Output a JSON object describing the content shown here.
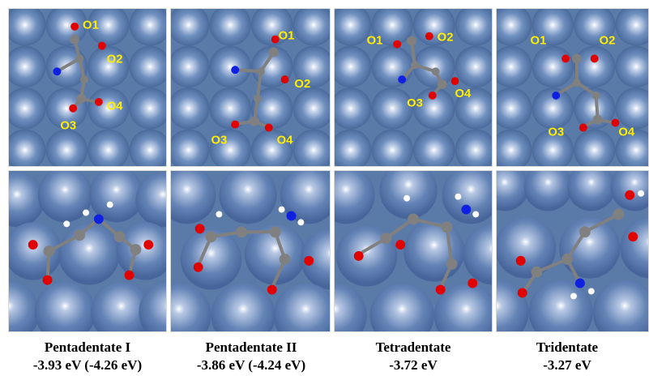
{
  "colors": {
    "surface": "#5a7aa8",
    "carbon": "#808080",
    "oxygen": "#e00000",
    "nitrogen": "#1020e0",
    "hydrogen": "#ffffff",
    "label": "#ffee00"
  },
  "panels": [
    {
      "name": "Pentadentate I",
      "energy": "-3.93 eV (-4.26 eV)",
      "labels": [
        "O1",
        "O2",
        "O3",
        "O4"
      ]
    },
    {
      "name": "Pentadentate II",
      "energy": "-3.86 eV (-4.24 eV)",
      "labels": [
        "O1",
        "O2",
        "O3",
        "O4"
      ]
    },
    {
      "name": "Tetradentate",
      "energy": "-3.72 eV",
      "labels": [
        "O1",
        "O2",
        "O3",
        "O4"
      ]
    },
    {
      "name": "Tridentate",
      "energy": "-3.27 eV",
      "labels": [
        "O1",
        "O2",
        "O3",
        "O4"
      ]
    }
  ]
}
